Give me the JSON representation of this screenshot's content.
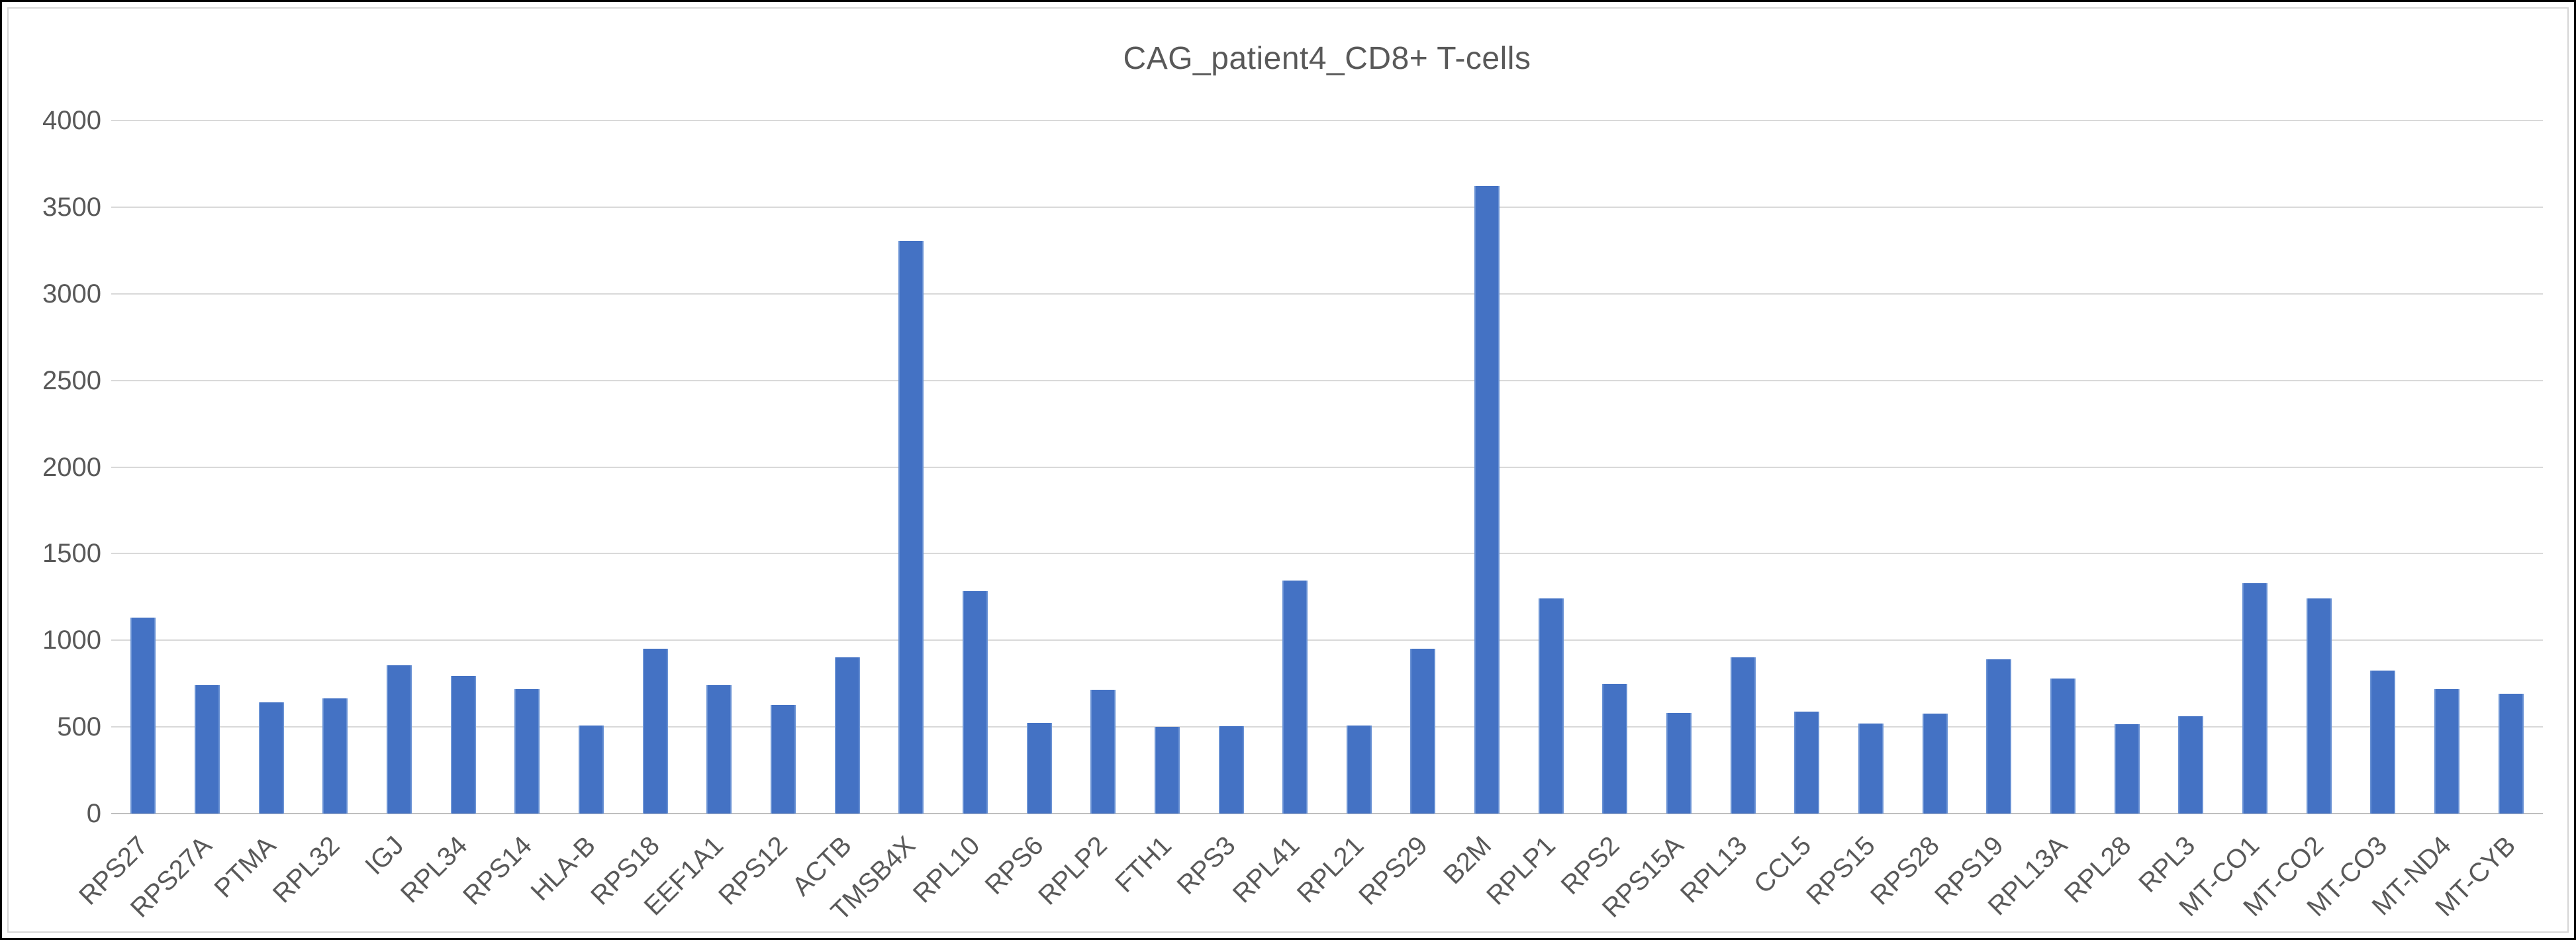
{
  "window": {
    "outer_border_color": "#000000",
    "chart_border_color": "#d6d6d6",
    "background_color": "#ffffff"
  },
  "chart": {
    "title_color": "#595959",
    "bar_color": "#4472c4",
    "gridline_color": "#d9d9d9",
    "axis_line_color": "#bfbfbf",
    "tick_label_color": "#595959"
  },
  "chart_data": {
    "type": "bar",
    "title": "CAG_patient4_CD8+ T-cells",
    "xlabel": "",
    "ylabel": "",
    "ylim": [
      0,
      4000
    ],
    "yticks": [
      0,
      500,
      1000,
      1500,
      2000,
      2500,
      3000,
      3500,
      4000
    ],
    "grid": true,
    "legend": false,
    "categories": [
      "RPS27",
      "RPS27A",
      "PTMA",
      "RPL32",
      "IGJ",
      "RPL34",
      "RPS14",
      "HLA-B",
      "RPS18",
      "EEF1A1",
      "RPS12",
      "ACTB",
      "TMSB4X",
      "RPL10",
      "RPS6",
      "RPLP2",
      "FTH1",
      "RPS3",
      "RPL41",
      "RPL21",
      "RPS29",
      "B2M",
      "RPLP1",
      "RPS2",
      "RPS15A",
      "RPL13",
      "CCL5",
      "RPS15",
      "RPS28",
      "RPS19",
      "RPL13A",
      "RPL28",
      "RPL3",
      "MT-CO1",
      "MT-CO2",
      "MT-CO3",
      "MT-ND4",
      "MT-CYB"
    ],
    "values": [
      1130,
      740,
      640,
      665,
      855,
      795,
      720,
      510,
      950,
      740,
      625,
      900,
      3305,
      1285,
      525,
      715,
      500,
      505,
      1345,
      510,
      950,
      3620,
      1240,
      750,
      580,
      900,
      590,
      520,
      575,
      890,
      780,
      515,
      560,
      1330,
      1240,
      825,
      720,
      690
    ]
  }
}
